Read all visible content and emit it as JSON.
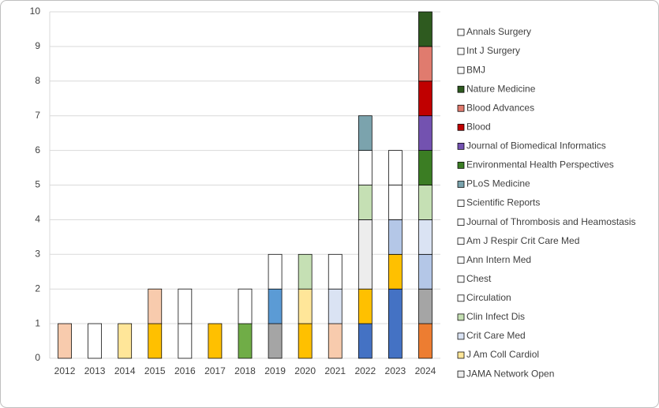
{
  "chart_data": {
    "type": "stacked_bar",
    "categories": [
      "2012",
      "2013",
      "2014",
      "2015",
      "2016",
      "2017",
      "2018",
      "2019",
      "2020",
      "2021",
      "2022",
      "2023",
      "2024"
    ],
    "ylim": [
      0,
      10
    ],
    "yticks": [
      0,
      1,
      2,
      3,
      4,
      5,
      6,
      7,
      8,
      9,
      10
    ],
    "grid": true,
    "legend": "right",
    "series": [
      {
        "color": "#ed7d31",
        "values": [
          0,
          0,
          0,
          0,
          0,
          0,
          0,
          0,
          0,
          0,
          0,
          0,
          1
        ]
      },
      {
        "color": "#4472c4",
        "values": [
          0,
          0,
          0,
          0,
          0,
          0,
          0,
          0,
          0,
          0,
          1,
          2,
          0
        ]
      },
      {
        "color": "#a5a5a5",
        "values": [
          0,
          0,
          0,
          0,
          0,
          0,
          0,
          1,
          0,
          0,
          0,
          0,
          1
        ]
      },
      {
        "color": "#ffc000",
        "values": [
          0,
          0,
          0,
          1,
          0,
          1,
          0,
          0,
          1,
          0,
          1,
          1,
          0
        ]
      },
      {
        "color": "#b4c7e7",
        "values": [
          0,
          0,
          0,
          0,
          0,
          0,
          0,
          0,
          0,
          0,
          0,
          1,
          1
        ]
      },
      {
        "color": "#f8cbad",
        "values": [
          1,
          0,
          0,
          1,
          0,
          0,
          0,
          0,
          0,
          1,
          0,
          0,
          0
        ]
      },
      {
        "color": "#70ad47",
        "values": [
          0,
          0,
          0,
          0,
          0,
          0,
          1,
          0,
          0,
          0,
          0,
          0,
          0
        ]
      },
      {
        "color": "#5b9bd5",
        "values": [
          0,
          0,
          0,
          0,
          0,
          0,
          0,
          1,
          0,
          0,
          0,
          0,
          0
        ]
      },
      {
        "name": "JAMA Network Open",
        "color": "#ededed",
        "values": [
          0,
          0,
          0,
          0,
          0,
          0,
          0,
          0,
          0,
          0,
          2,
          0,
          0
        ]
      },
      {
        "name": "J Am Coll Cardiol",
        "color": "#ffe699",
        "values": [
          0,
          0,
          1,
          0,
          0,
          0,
          0,
          0,
          1,
          0,
          0,
          0,
          0
        ]
      },
      {
        "name": "Crit Care Med",
        "color": "#dae3f3",
        "values": [
          0,
          0,
          0,
          0,
          0,
          0,
          0,
          0,
          0,
          1,
          0,
          0,
          1
        ]
      },
      {
        "name": "Clin Infect Dis",
        "color": "#c5e0b4",
        "values": [
          0,
          0,
          0,
          0,
          0,
          0,
          0,
          0,
          1,
          0,
          1,
          0,
          1
        ]
      },
      {
        "name": "Circulation",
        "color": "#ffffff",
        "values": [
          0,
          1,
          0,
          0,
          1,
          0,
          0,
          0,
          0,
          0,
          0,
          0,
          0
        ]
      },
      {
        "name": "Chest",
        "color": "#ffffff",
        "values": [
          0,
          0,
          0,
          0,
          1,
          0,
          0,
          0,
          0,
          0,
          0,
          0,
          0
        ]
      },
      {
        "name": "Ann Intern Med",
        "color": "#ffffff",
        "values": [
          0,
          0,
          0,
          0,
          0,
          0,
          1,
          0,
          0,
          0,
          0,
          0,
          0
        ]
      },
      {
        "name": "Am J Respir Crit Care Med",
        "color": "#ffffff",
        "values": [
          0,
          0,
          0,
          0,
          0,
          0,
          0,
          1,
          0,
          0,
          0,
          1,
          0
        ]
      },
      {
        "name": "Journal of Thrombosis and Heamostasis",
        "color": "#ffffff",
        "values": [
          0,
          0,
          0,
          0,
          0,
          0,
          0,
          0,
          0,
          1,
          0,
          0,
          0
        ]
      },
      {
        "name": "Scientific Reports",
        "color": "#ffffff",
        "values": [
          0,
          0,
          0,
          0,
          0,
          0,
          0,
          0,
          0,
          0,
          1,
          1,
          0
        ]
      },
      {
        "name": "PLoS Medicine",
        "color": "#7ba3ad",
        "values": [
          0,
          0,
          0,
          0,
          0,
          0,
          0,
          0,
          0,
          0,
          1,
          0,
          0
        ]
      },
      {
        "name": "Environmental Health Perspectives",
        "color": "#3b7d23",
        "values": [
          0,
          0,
          0,
          0,
          0,
          0,
          0,
          0,
          0,
          0,
          0,
          0,
          1
        ]
      },
      {
        "name": "Journal of Biomedical Informatics",
        "color": "#7352b0",
        "values": [
          0,
          0,
          0,
          0,
          0,
          0,
          0,
          0,
          0,
          0,
          0,
          0,
          1
        ]
      },
      {
        "name": "Blood",
        "color": "#c00000",
        "values": [
          0,
          0,
          0,
          0,
          0,
          0,
          0,
          0,
          0,
          0,
          0,
          0,
          1
        ]
      },
      {
        "name": "Blood Advances",
        "color": "#e07b6e",
        "values": [
          0,
          0,
          0,
          0,
          0,
          0,
          0,
          0,
          0,
          0,
          0,
          0,
          1
        ]
      },
      {
        "name": "Nature Medicine",
        "color": "#2e5a1f",
        "values": [
          0,
          0,
          0,
          0,
          0,
          0,
          0,
          0,
          0,
          0,
          0,
          0,
          1
        ]
      },
      {
        "name": "BMJ",
        "color": "#ffffff",
        "values": [
          0,
          0,
          0,
          0,
          0,
          0,
          0,
          0,
          0,
          0,
          0,
          0,
          0
        ]
      },
      {
        "name": "Int J Surgery",
        "color": "#ffffff",
        "values": [
          0,
          0,
          0,
          0,
          0,
          0,
          0,
          0,
          0,
          0,
          0,
          0,
          0
        ]
      },
      {
        "name": "Annals Surgery",
        "color": "#ffffff",
        "values": [
          0,
          0,
          0,
          0,
          0,
          0,
          0,
          0,
          0,
          0,
          0,
          0,
          0
        ]
      }
    ]
  }
}
